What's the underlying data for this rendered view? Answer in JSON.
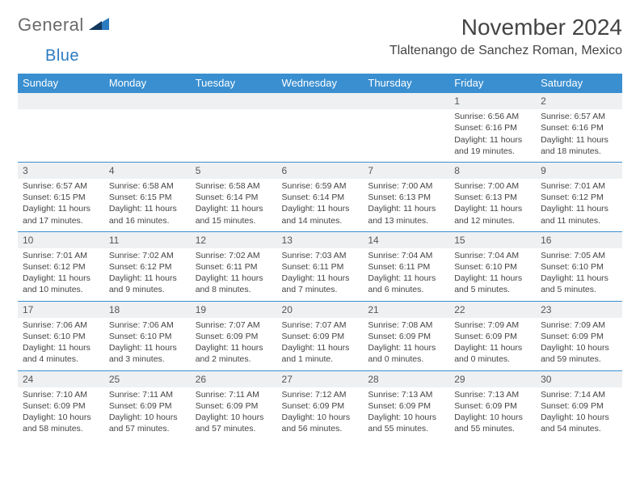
{
  "logo": {
    "general": "General",
    "blue": "Blue"
  },
  "title": "November 2024",
  "location": "Tlaltenango de Sanchez Roman, Mexico",
  "dayHeaders": [
    "Sunday",
    "Monday",
    "Tuesday",
    "Wednesday",
    "Thursday",
    "Friday",
    "Saturday"
  ],
  "colors": {
    "header_bg": "#3a8fd0",
    "header_text": "#ffffff",
    "spacer_bg": "#eef0f2",
    "border": "#3a8fd0",
    "text": "#444444"
  },
  "weeks": [
    [
      null,
      null,
      null,
      null,
      null,
      {
        "n": "1",
        "sr": "Sunrise: 6:56 AM",
        "ss": "Sunset: 6:16 PM",
        "d1": "Daylight: 11 hours",
        "d2": "and 19 minutes."
      },
      {
        "n": "2",
        "sr": "Sunrise: 6:57 AM",
        "ss": "Sunset: 6:16 PM",
        "d1": "Daylight: 11 hours",
        "d2": "and 18 minutes."
      }
    ],
    [
      {
        "n": "3",
        "sr": "Sunrise: 6:57 AM",
        "ss": "Sunset: 6:15 PM",
        "d1": "Daylight: 11 hours",
        "d2": "and 17 minutes."
      },
      {
        "n": "4",
        "sr": "Sunrise: 6:58 AM",
        "ss": "Sunset: 6:15 PM",
        "d1": "Daylight: 11 hours",
        "d2": "and 16 minutes."
      },
      {
        "n": "5",
        "sr": "Sunrise: 6:58 AM",
        "ss": "Sunset: 6:14 PM",
        "d1": "Daylight: 11 hours",
        "d2": "and 15 minutes."
      },
      {
        "n": "6",
        "sr": "Sunrise: 6:59 AM",
        "ss": "Sunset: 6:14 PM",
        "d1": "Daylight: 11 hours",
        "d2": "and 14 minutes."
      },
      {
        "n": "7",
        "sr": "Sunrise: 7:00 AM",
        "ss": "Sunset: 6:13 PM",
        "d1": "Daylight: 11 hours",
        "d2": "and 13 minutes."
      },
      {
        "n": "8",
        "sr": "Sunrise: 7:00 AM",
        "ss": "Sunset: 6:13 PM",
        "d1": "Daylight: 11 hours",
        "d2": "and 12 minutes."
      },
      {
        "n": "9",
        "sr": "Sunrise: 7:01 AM",
        "ss": "Sunset: 6:12 PM",
        "d1": "Daylight: 11 hours",
        "d2": "and 11 minutes."
      }
    ],
    [
      {
        "n": "10",
        "sr": "Sunrise: 7:01 AM",
        "ss": "Sunset: 6:12 PM",
        "d1": "Daylight: 11 hours",
        "d2": "and 10 minutes."
      },
      {
        "n": "11",
        "sr": "Sunrise: 7:02 AM",
        "ss": "Sunset: 6:12 PM",
        "d1": "Daylight: 11 hours",
        "d2": "and 9 minutes."
      },
      {
        "n": "12",
        "sr": "Sunrise: 7:02 AM",
        "ss": "Sunset: 6:11 PM",
        "d1": "Daylight: 11 hours",
        "d2": "and 8 minutes."
      },
      {
        "n": "13",
        "sr": "Sunrise: 7:03 AM",
        "ss": "Sunset: 6:11 PM",
        "d1": "Daylight: 11 hours",
        "d2": "and 7 minutes."
      },
      {
        "n": "14",
        "sr": "Sunrise: 7:04 AM",
        "ss": "Sunset: 6:11 PM",
        "d1": "Daylight: 11 hours",
        "d2": "and 6 minutes."
      },
      {
        "n": "15",
        "sr": "Sunrise: 7:04 AM",
        "ss": "Sunset: 6:10 PM",
        "d1": "Daylight: 11 hours",
        "d2": "and 5 minutes."
      },
      {
        "n": "16",
        "sr": "Sunrise: 7:05 AM",
        "ss": "Sunset: 6:10 PM",
        "d1": "Daylight: 11 hours",
        "d2": "and 5 minutes."
      }
    ],
    [
      {
        "n": "17",
        "sr": "Sunrise: 7:06 AM",
        "ss": "Sunset: 6:10 PM",
        "d1": "Daylight: 11 hours",
        "d2": "and 4 minutes."
      },
      {
        "n": "18",
        "sr": "Sunrise: 7:06 AM",
        "ss": "Sunset: 6:10 PM",
        "d1": "Daylight: 11 hours",
        "d2": "and 3 minutes."
      },
      {
        "n": "19",
        "sr": "Sunrise: 7:07 AM",
        "ss": "Sunset: 6:09 PM",
        "d1": "Daylight: 11 hours",
        "d2": "and 2 minutes."
      },
      {
        "n": "20",
        "sr": "Sunrise: 7:07 AM",
        "ss": "Sunset: 6:09 PM",
        "d1": "Daylight: 11 hours",
        "d2": "and 1 minute."
      },
      {
        "n": "21",
        "sr": "Sunrise: 7:08 AM",
        "ss": "Sunset: 6:09 PM",
        "d1": "Daylight: 11 hours",
        "d2": "and 0 minutes."
      },
      {
        "n": "22",
        "sr": "Sunrise: 7:09 AM",
        "ss": "Sunset: 6:09 PM",
        "d1": "Daylight: 11 hours",
        "d2": "and 0 minutes."
      },
      {
        "n": "23",
        "sr": "Sunrise: 7:09 AM",
        "ss": "Sunset: 6:09 PM",
        "d1": "Daylight: 10 hours",
        "d2": "and 59 minutes."
      }
    ],
    [
      {
        "n": "24",
        "sr": "Sunrise: 7:10 AM",
        "ss": "Sunset: 6:09 PM",
        "d1": "Daylight: 10 hours",
        "d2": "and 58 minutes."
      },
      {
        "n": "25",
        "sr": "Sunrise: 7:11 AM",
        "ss": "Sunset: 6:09 PM",
        "d1": "Daylight: 10 hours",
        "d2": "and 57 minutes."
      },
      {
        "n": "26",
        "sr": "Sunrise: 7:11 AM",
        "ss": "Sunset: 6:09 PM",
        "d1": "Daylight: 10 hours",
        "d2": "and 57 minutes."
      },
      {
        "n": "27",
        "sr": "Sunrise: 7:12 AM",
        "ss": "Sunset: 6:09 PM",
        "d1": "Daylight: 10 hours",
        "d2": "and 56 minutes."
      },
      {
        "n": "28",
        "sr": "Sunrise: 7:13 AM",
        "ss": "Sunset: 6:09 PM",
        "d1": "Daylight: 10 hours",
        "d2": "and 55 minutes."
      },
      {
        "n": "29",
        "sr": "Sunrise: 7:13 AM",
        "ss": "Sunset: 6:09 PM",
        "d1": "Daylight: 10 hours",
        "d2": "and 55 minutes."
      },
      {
        "n": "30",
        "sr": "Sunrise: 7:14 AM",
        "ss": "Sunset: 6:09 PM",
        "d1": "Daylight: 10 hours",
        "d2": "and 54 minutes."
      }
    ]
  ]
}
